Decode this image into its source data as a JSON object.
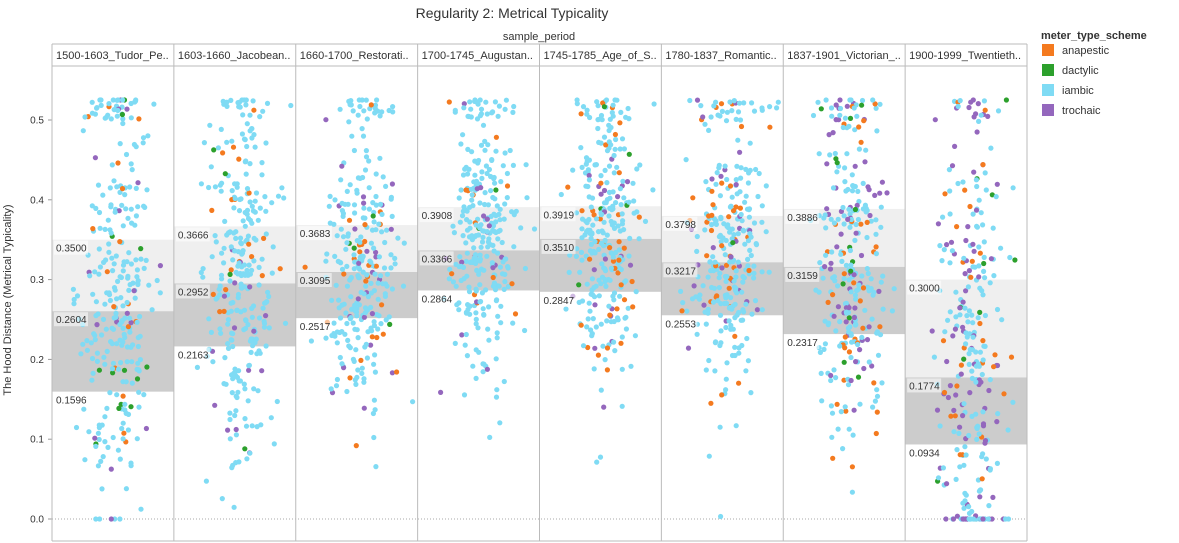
{
  "chart_data": {
    "type": "scatter",
    "title": "Regularity 2: Metrical Typicality",
    "column_header": "sample_period",
    "ylabel": "The Hood Distance (Metrical Typicality)",
    "ylim": [
      0,
      0.55
    ],
    "y_ticks": [
      "0.0",
      "0.1",
      "0.2",
      "0.3",
      "0.4",
      "0.5"
    ],
    "y_tick_values": [
      0,
      0.1,
      0.2,
      0.3,
      0.4,
      0.5
    ],
    "legend": {
      "title": "meter_type_scheme",
      "position": "top-right",
      "entries": [
        {
          "name": "anapestic",
          "color": "#f47a1f"
        },
        {
          "name": "dactylic",
          "color": "#2ca02c"
        },
        {
          "name": "iambic",
          "color": "#7fdbf4"
        },
        {
          "name": "trochaic",
          "color": "#9467bd"
        }
      ]
    },
    "panels": [
      {
        "label": "1500-1603_Tudor_Pe..",
        "upper": 0.35,
        "median": 0.2604,
        "lower": 0.1596,
        "upper_label": "0.3500",
        "median_label": "0.2604",
        "lower_label": "0.1596",
        "mix": [
          0.04,
          0.05,
          0.85,
          0.06
        ]
      },
      {
        "label": "1603-1660_Jacobean..",
        "upper": 0.3666,
        "median": 0.2952,
        "lower": 0.2163,
        "upper_label": "0.3666",
        "median_label": "0.2952",
        "lower_label": "0.2163",
        "mix": [
          0.04,
          0.02,
          0.9,
          0.04
        ]
      },
      {
        "label": "1660-1700_Restorati..",
        "upper": 0.3683,
        "median": 0.3095,
        "lower": 0.2517,
        "upper_label": "0.3683",
        "median_label": "0.3095",
        "lower_label": "0.2517",
        "mix": [
          0.06,
          0.02,
          0.86,
          0.06
        ]
      },
      {
        "label": "1700-1745_Augustan..",
        "upper": 0.3908,
        "median": 0.3366,
        "lower": 0.2864,
        "upper_label": "0.3908",
        "median_label": "0.3366",
        "lower_label": "0.2864",
        "mix": [
          0.06,
          0.01,
          0.88,
          0.05
        ]
      },
      {
        "label": "1745-1785_Age_of_S..",
        "upper": 0.3919,
        "median": 0.351,
        "lower": 0.2847,
        "upper_label": "0.3919",
        "median_label": "0.3510",
        "lower_label": "0.2847",
        "mix": [
          0.1,
          0.02,
          0.8,
          0.08
        ]
      },
      {
        "label": "1780-1837_Romantic..",
        "upper": 0.3798,
        "median": 0.3217,
        "lower": 0.2553,
        "upper_label": "0.3798",
        "median_label": "0.3217",
        "lower_label": "0.2553",
        "mix": [
          0.14,
          0.01,
          0.77,
          0.08
        ]
      },
      {
        "label": "1837-1901_Victorian_..",
        "upper": 0.3886,
        "median": 0.3159,
        "lower": 0.2317,
        "upper_label": "0.3886",
        "median_label": "0.3159",
        "lower_label": "0.2317",
        "mix": [
          0.12,
          0.03,
          0.62,
          0.23
        ]
      },
      {
        "label": "1900-1999_Twentieth..",
        "upper": 0.3,
        "median": 0.1774,
        "lower": 0.0934,
        "upper_label": "0.3000",
        "median_label": "0.1774",
        "lower_label": "0.0934",
        "mix": [
          0.08,
          0.03,
          0.64,
          0.25
        ]
      }
    ],
    "points_per_panel": 300
  }
}
